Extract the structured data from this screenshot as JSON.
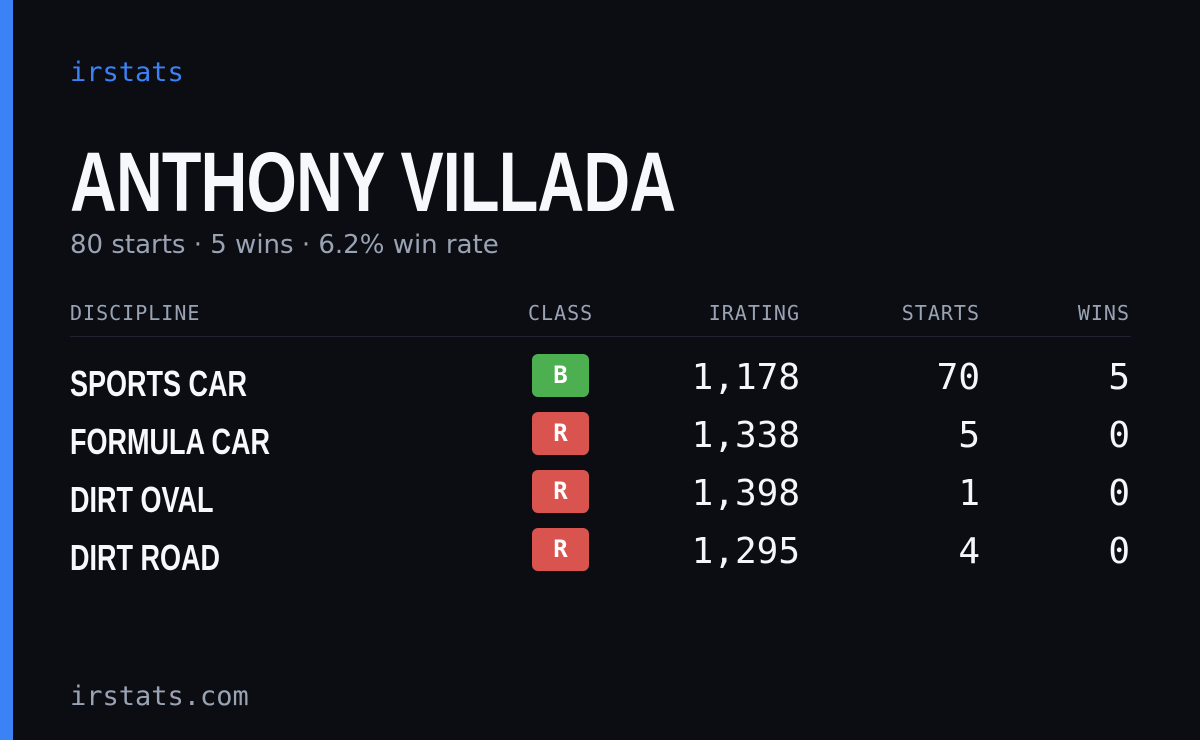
{
  "brand": "irstats",
  "driver": {
    "name": "ANTHONY VILLADA",
    "starts_text": "80 starts",
    "wins_text": "5 wins",
    "win_rate_text": "6.2% win rate",
    "separator": "·"
  },
  "table": {
    "headers": {
      "discipline": "DISCIPLINE",
      "class": "CLASS",
      "irating": "IRATING",
      "starts": "STARTS",
      "wins": "WINS"
    },
    "rows": [
      {
        "discipline": "SPORTS CAR",
        "class": "B",
        "class_color": "#4caf50",
        "irating": "1,178",
        "starts": "70",
        "wins": "5"
      },
      {
        "discipline": "FORMULA CAR",
        "class": "R",
        "class_color": "#d9534f",
        "irating": "1,338",
        "starts": "5",
        "wins": "0"
      },
      {
        "discipline": "DIRT OVAL",
        "class": "R",
        "class_color": "#d9534f",
        "irating": "1,398",
        "starts": "1",
        "wins": "0"
      },
      {
        "discipline": "DIRT ROAD",
        "class": "R",
        "class_color": "#d9534f",
        "irating": "1,295",
        "starts": "4",
        "wins": "0"
      }
    ]
  },
  "footer": {
    "url": "irstats.com"
  },
  "colors": {
    "background": "#0b0d13",
    "accent": "#3b82f6",
    "muted_text": "#9aa3b3",
    "primary_text": "#f7f8fc",
    "class_b": "#4caf50",
    "class_r": "#d9534f"
  }
}
